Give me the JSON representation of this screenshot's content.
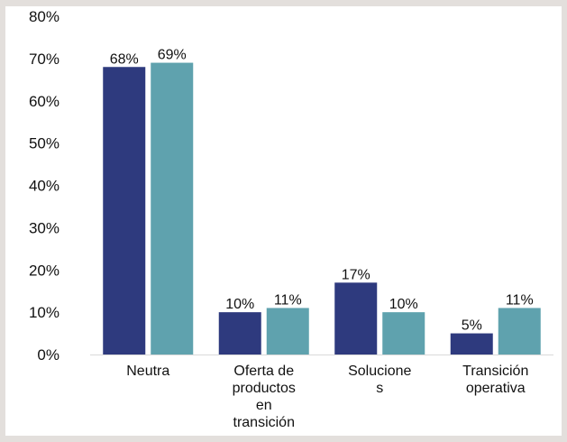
{
  "chart_data": {
    "type": "bar",
    "categories": [
      [
        "Neutra"
      ],
      [
        "Oferta de",
        "productos",
        "en",
        "transición"
      ],
      [
        "Solucione",
        "s"
      ],
      [
        "Transición",
        "operativa"
      ]
    ],
    "series": [
      {
        "values": [
          68,
          10,
          17,
          5
        ],
        "labels": [
          "68%",
          "10%",
          "17%",
          "5%"
        ],
        "color": "#2e3a7e"
      },
      {
        "values": [
          69,
          11,
          10,
          11
        ],
        "labels": [
          "69%",
          "11%",
          "10%",
          "11%"
        ],
        "color": "#5fa2ae"
      }
    ],
    "yticks": [
      "0%",
      "10%",
      "20%",
      "30%",
      "40%",
      "50%",
      "60%",
      "70%",
      "80%"
    ],
    "ylim": [
      0,
      80
    ],
    "grid": false,
    "legend": "none"
  }
}
